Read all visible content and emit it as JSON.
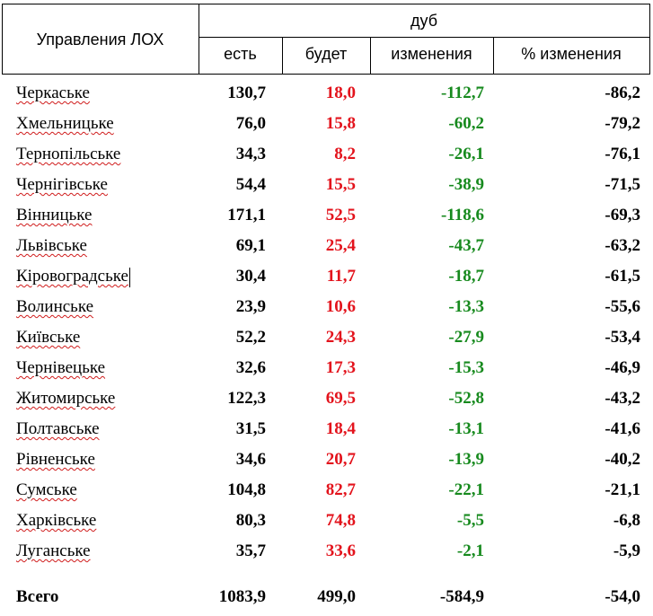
{
  "header": {
    "col_name": "Управления ЛОХ",
    "group": "дуб",
    "col_est": "есть",
    "col_bud": "будет",
    "col_izm": "изменения",
    "col_pct": "% изменения"
  },
  "rows": [
    {
      "name": "Черкаське",
      "est": "130,7",
      "bud": "18,0",
      "izm": "-112,7",
      "pct": "-86,2"
    },
    {
      "name": "Хмельницьке",
      "est": "76,0",
      "bud": "15,8",
      "izm": "-60,2",
      "pct": "-79,2"
    },
    {
      "name": "Тернопільське",
      "est": "34,3",
      "bud": "8,2",
      "izm": "-26,1",
      "pct": "-76,1"
    },
    {
      "name": "Чернігівське",
      "est": "54,4",
      "bud": "15,5",
      "izm": "-38,9",
      "pct": "-71,5"
    },
    {
      "name": "Вінницьке",
      "est": "171,1",
      "bud": "52,5",
      "izm": "-118,6",
      "pct": "-69,3"
    },
    {
      "name": "Львівське",
      "est": "69,1",
      "bud": "25,4",
      "izm": "-43,7",
      "pct": "-63,2"
    },
    {
      "name": "Кіровоградське",
      "est": "30,4",
      "bud": "11,7",
      "izm": "-18,7",
      "pct": "-61,5"
    },
    {
      "name": "Волинське",
      "est": "23,9",
      "bud": "10,6",
      "izm": "-13,3",
      "pct": "-55,6"
    },
    {
      "name": "Київське",
      "est": "52,2",
      "bud": "24,3",
      "izm": "-27,9",
      "pct": "-53,4"
    },
    {
      "name": "Чернівецьке",
      "est": "32,6",
      "bud": "17,3",
      "izm": "-15,3",
      "pct": "-46,9"
    },
    {
      "name": "Житомирське",
      "est": "122,3",
      "bud": "69,5",
      "izm": "-52,8",
      "pct": "-43,2"
    },
    {
      "name": "Полтавське",
      "est": "31,5",
      "bud": "18,4",
      "izm": "-13,1",
      "pct": "-41,6"
    },
    {
      "name": "Рівненське",
      "est": "34,6",
      "bud": "20,7",
      "izm": "-13,9",
      "pct": "-40,2"
    },
    {
      "name": "Сумське",
      "est": "104,8",
      "bud": "82,7",
      "izm": "-22,1",
      "pct": "-21,1"
    },
    {
      "name": "Харківське",
      "est": "80,3",
      "bud": "74,8",
      "izm": "-5,5",
      "pct": "-6,8"
    },
    {
      "name": "Луганське",
      "est": "35,7",
      "bud": "33,6",
      "izm": "-2,1",
      "pct": "-5,9"
    }
  ],
  "total": {
    "name": "Всего",
    "est": "1083,9",
    "bud": "499,0",
    "izm": "-584,9",
    "pct": "-54,0"
  },
  "colors": {
    "bud": "#e3131c",
    "izm": "#178a1e",
    "underline": "#d01c1c"
  }
}
